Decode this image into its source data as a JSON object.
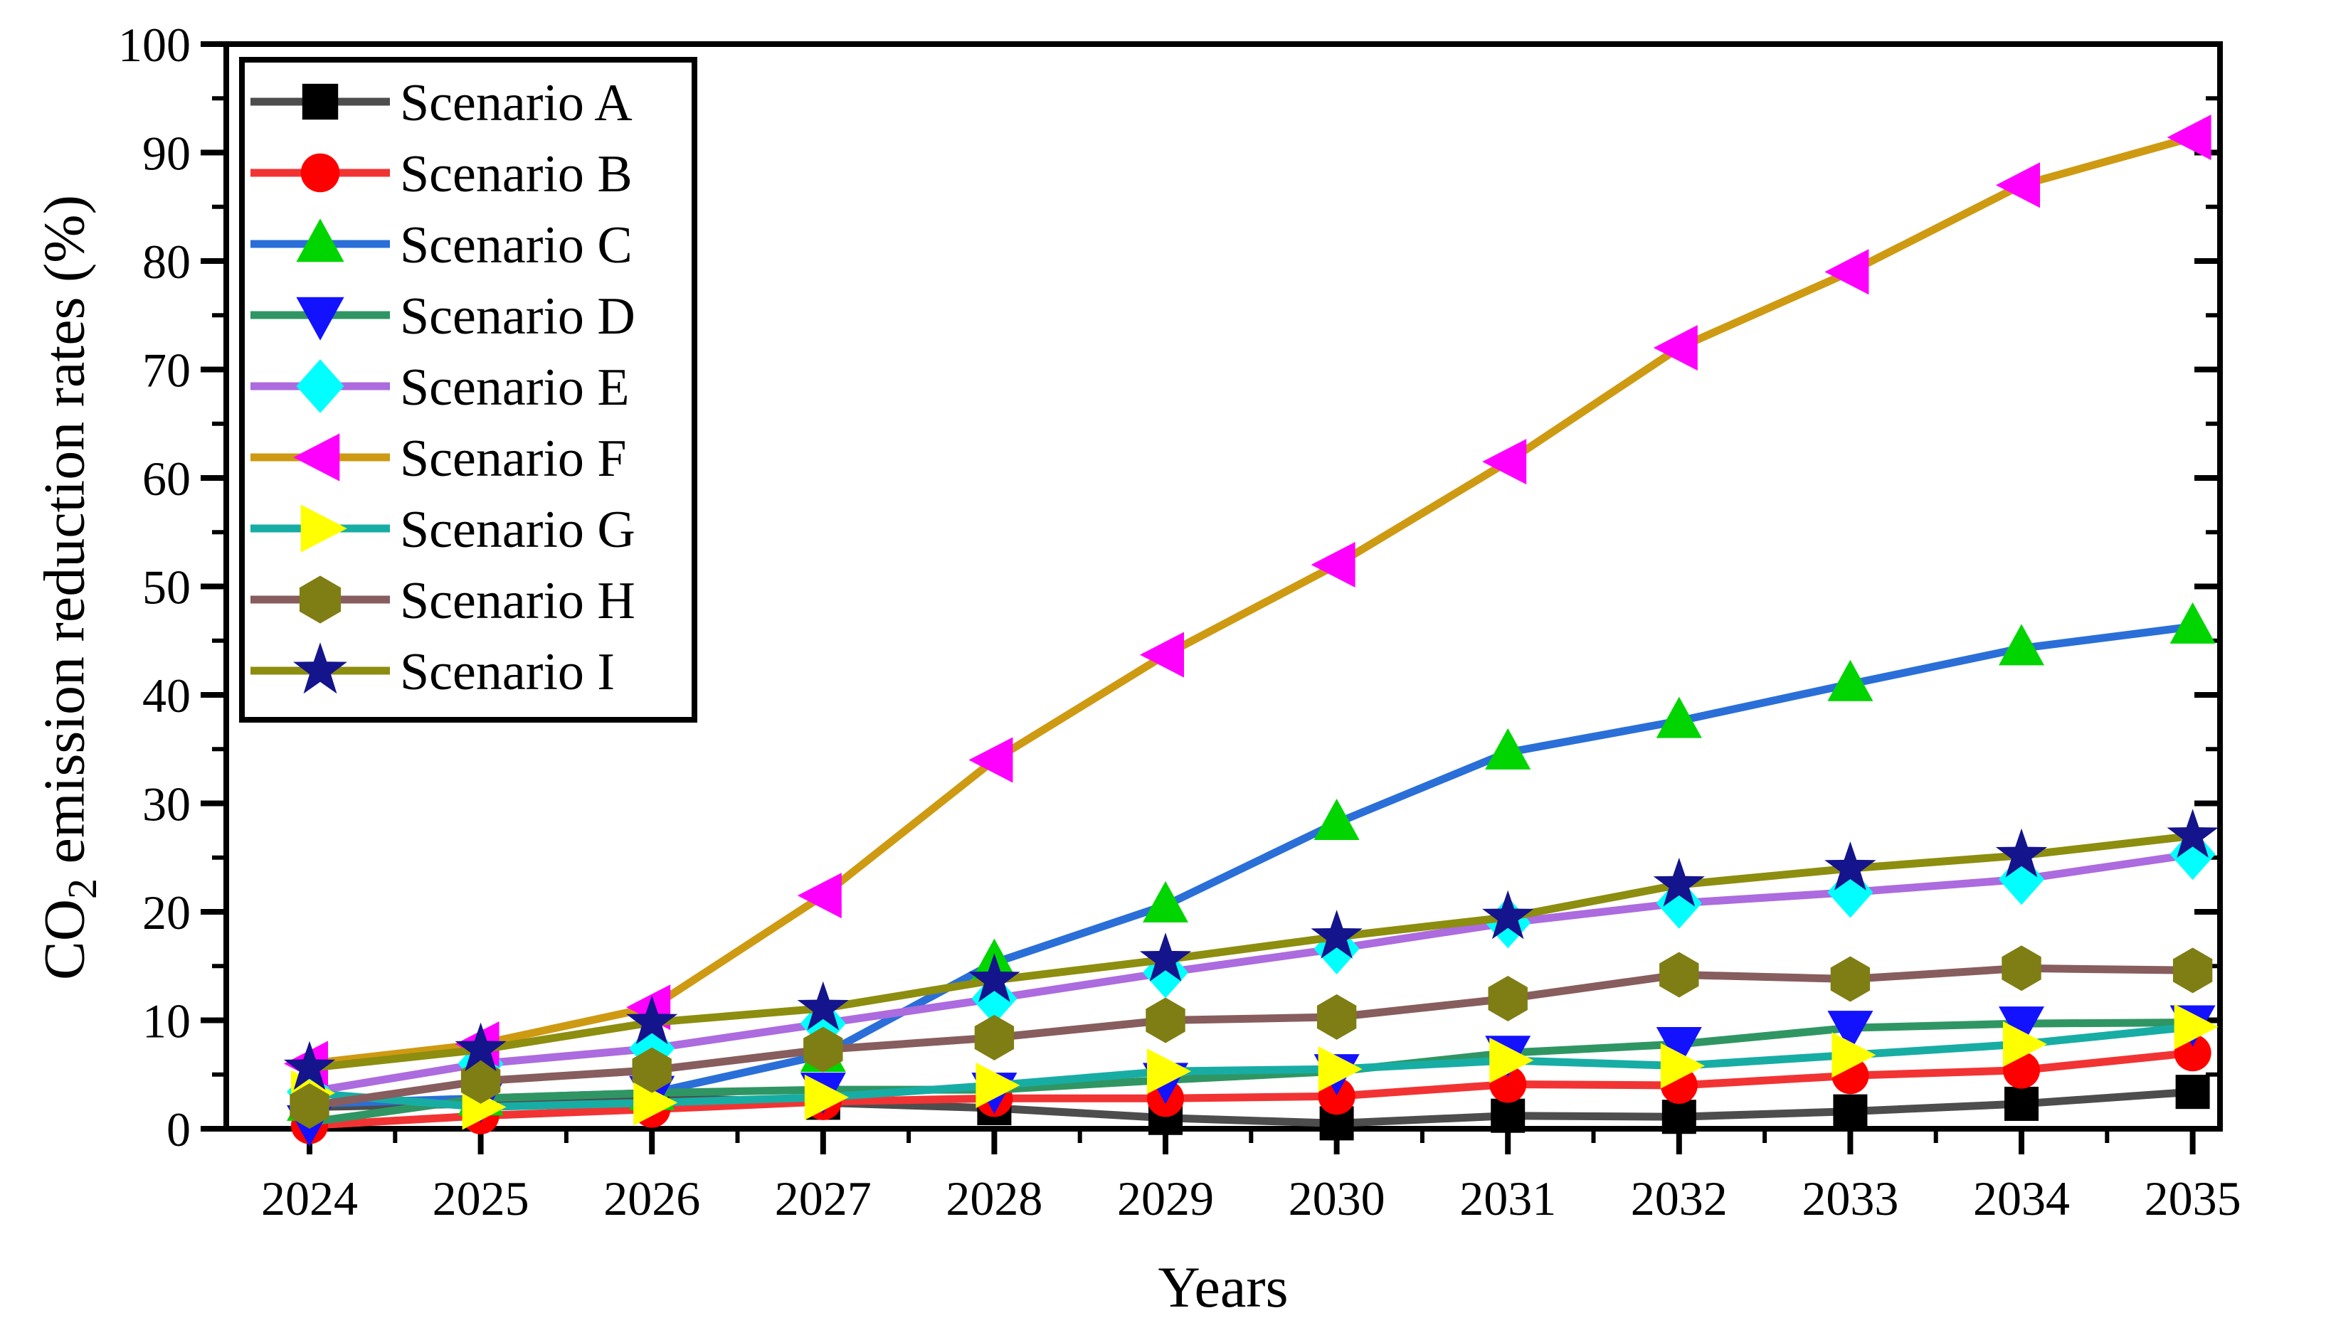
{
  "figure": {
    "background_color": "#ffffff",
    "frame_color": "#000000",
    "x_axis": {
      "title": "Years",
      "tick_labels": [
        "2024",
        "2025",
        "2026",
        "2027",
        "2028",
        "2029",
        "2030",
        "2031",
        "2032",
        "2033",
        "2034",
        "2035"
      ]
    },
    "y_axis": {
      "title_prefix": "CO",
      "title_subscript": "2",
      "title_suffix": " emission reduction rates (%)",
      "tick_labels": [
        "0",
        "10",
        "20",
        "30",
        "40",
        "50",
        "60",
        "70",
        "80",
        "90",
        "100"
      ]
    },
    "legend": {
      "entries": [
        "Scenario A",
        "Scenario B",
        "Scenario C",
        "Scenario D",
        "Scenario E",
        "Scenario F",
        "Scenario G",
        "Scenario H",
        "Scenario I"
      ]
    }
  },
  "chart_data": {
    "type": "line",
    "title": "",
    "xlabel": "Years",
    "ylabel": "CO2 emission reduction rates (%)",
    "x": [
      2024,
      2025,
      2026,
      2027,
      2028,
      2029,
      2030,
      2031,
      2032,
      2033,
      2034,
      2035
    ],
    "xlim": [
      2023.5,
      2035.2
    ],
    "ylim": [
      0,
      100
    ],
    "y_major_step": 10,
    "y_minor_step": 5,
    "x_minor_step": 0.5,
    "grid": false,
    "legend_position": "top-left",
    "series": [
      {
        "name": "Scenario A",
        "line_color": "#4D4D4D",
        "marker": "square",
        "marker_color": "#000000",
        "values": [
          2.0,
          2.3,
          2.9,
          2.4,
          1.9,
          1.0,
          0.5,
          1.2,
          1.1,
          1.6,
          2.3,
          3.4
        ]
      },
      {
        "name": "Scenario B",
        "line_color": "#F23333",
        "marker": "circle",
        "marker_color": "#FF0000",
        "values": [
          0.3,
          1.2,
          1.8,
          2.5,
          2.8,
          2.8,
          3.0,
          4.1,
          4.0,
          4.9,
          5.4,
          7.0
        ]
      },
      {
        "name": "Scenario C",
        "line_color": "#2A6FD8",
        "marker": "triangle-up",
        "marker_color": "#00D500",
        "values": [
          2.3,
          2.8,
          3.3,
          6.8,
          15.3,
          20.6,
          28.2,
          34.7,
          37.6,
          41.0,
          44.3,
          46.3
        ]
      },
      {
        "name": "Scenario D",
        "line_color": "#2F9663",
        "marker": "triangle-down",
        "marker_color": "#1212FF",
        "values": [
          0.6,
          2.8,
          3.3,
          3.6,
          3.6,
          4.5,
          5.3,
          7.0,
          7.8,
          9.3,
          9.7,
          9.8
        ]
      },
      {
        "name": "Scenario E",
        "line_color": "#AC6BDE",
        "marker": "diamond",
        "marker_color": "#00FFFF",
        "values": [
          3.4,
          6.0,
          7.4,
          9.7,
          12.0,
          14.4,
          16.6,
          19.0,
          20.8,
          21.8,
          23.0,
          25.3
        ]
      },
      {
        "name": "Scenario F",
        "line_color": "#CE9A12",
        "marker": "triangle-left",
        "marker_color": "#FF00FF",
        "values": [
          6.0,
          7.8,
          11.2,
          21.5,
          34.0,
          43.7,
          52.0,
          61.5,
          72.0,
          79.0,
          87.0,
          91.4
        ]
      },
      {
        "name": "Scenario G",
        "line_color": "#17ADA4",
        "marker": "triangle-right",
        "marker_color": "#FFFF00",
        "values": [
          3.3,
          2.0,
          2.4,
          2.9,
          4.0,
          5.3,
          5.5,
          6.3,
          5.8,
          6.8,
          7.8,
          9.4
        ]
      },
      {
        "name": "Scenario H",
        "line_color": "#875D5D",
        "marker": "hexagon",
        "marker_color": "#7E7E14",
        "values": [
          2.1,
          4.4,
          5.4,
          7.3,
          8.4,
          10.0,
          10.3,
          12.0,
          14.2,
          13.8,
          14.8,
          14.6
        ]
      },
      {
        "name": "Scenario I",
        "line_color": "#8D8D0F",
        "marker": "star",
        "marker_color": "#14148C",
        "values": [
          5.6,
          7.3,
          9.8,
          11.1,
          13.7,
          15.6,
          17.7,
          19.5,
          22.5,
          24.0,
          25.2,
          27.0
        ]
      }
    ]
  }
}
